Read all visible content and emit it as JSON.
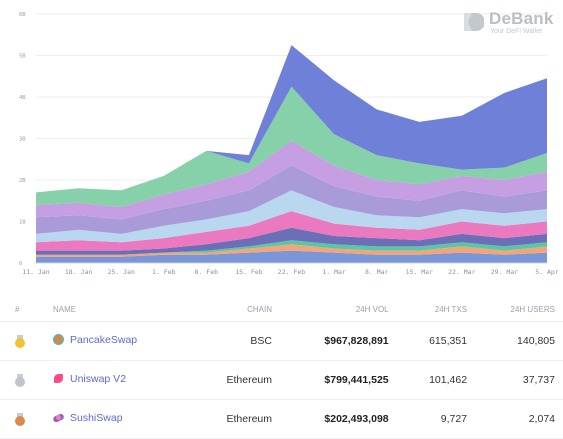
{
  "chart_data": {
    "type": "area",
    "stacked": true,
    "x": [
      "11. Jan",
      "18. Jan",
      "25. Jan",
      "1. Feb",
      "8. Feb",
      "15. Feb",
      "22. Feb",
      "1. Mar",
      "8. Mar",
      "15. Mar",
      "22. Mar",
      "29. Mar",
      "5. Apr"
    ],
    "y_ticks": [
      "0",
      "1B",
      "2B",
      "3B",
      "4B",
      "5B",
      "6B"
    ],
    "ylim": [
      0,
      6
    ],
    "grid": true,
    "series": [
      {
        "color": "#7b96d8",
        "values": [
          0.15,
          0.15,
          0.15,
          0.2,
          0.2,
          0.25,
          0.3,
          0.25,
          0.2,
          0.2,
          0.25,
          0.2,
          0.25
        ]
      },
      {
        "color": "#f0a57a",
        "values": [
          0.05,
          0.05,
          0.05,
          0.05,
          0.05,
          0.1,
          0.15,
          0.1,
          0.1,
          0.1,
          0.15,
          0.1,
          0.15
        ]
      },
      {
        "color": "#5ac6a3",
        "values": [
          0.0,
          0.0,
          0.0,
          0.0,
          0.05,
          0.05,
          0.1,
          0.1,
          0.1,
          0.1,
          0.1,
          0.1,
          0.1
        ]
      },
      {
        "color": "#6a6fb8",
        "values": [
          0.1,
          0.1,
          0.1,
          0.1,
          0.15,
          0.2,
          0.3,
          0.2,
          0.2,
          0.15,
          0.2,
          0.2,
          0.2
        ]
      },
      {
        "color": "#ea79c0",
        "values": [
          0.2,
          0.25,
          0.2,
          0.25,
          0.3,
          0.3,
          0.4,
          0.3,
          0.25,
          0.25,
          0.3,
          0.3,
          0.3
        ]
      },
      {
        "color": "#b9d7ee",
        "values": [
          0.2,
          0.25,
          0.2,
          0.3,
          0.3,
          0.35,
          0.5,
          0.4,
          0.3,
          0.3,
          0.3,
          0.3,
          0.3
        ]
      },
      {
        "color": "#a99ad8",
        "values": [
          0.4,
          0.35,
          0.35,
          0.4,
          0.45,
          0.5,
          0.6,
          0.5,
          0.45,
          0.4,
          0.45,
          0.4,
          0.45
        ]
      },
      {
        "color": "#c69ee2",
        "values": [
          0.3,
          0.3,
          0.3,
          0.35,
          0.4,
          0.45,
          0.6,
          0.5,
          0.4,
          0.4,
          0.35,
          0.4,
          0.45
        ]
      },
      {
        "color": "#86d1a9",
        "values": [
          0.3,
          0.35,
          0.4,
          0.45,
          0.8,
          0.2,
          1.3,
          0.75,
          0.6,
          0.5,
          0.15,
          0.3,
          0.45
        ]
      },
      {
        "color": "#6f80d8",
        "values": [
          0.0,
          0.0,
          0.0,
          0.0,
          0.0,
          0.2,
          1.0,
          1.3,
          1.1,
          1.0,
          1.3,
          1.8,
          1.8
        ]
      }
    ]
  },
  "logo": {
    "name": "DeBank",
    "tagline": "Your DeFi Wallet"
  },
  "table": {
    "headers": {
      "rank": "#",
      "name": "NAME",
      "chain": "CHAIN",
      "vol": "24H VOL",
      "txs": "24H TXS",
      "users": "24H USERS"
    },
    "rows": [
      {
        "name": "PancakeSwap",
        "chain": "BSC",
        "vol": "$967,828,891",
        "txs": "615,351",
        "users": "140,805",
        "medal": "#f2c230",
        "icon": "cake"
      },
      {
        "name": "Uniswap V2",
        "chain": "Ethereum",
        "vol": "$799,441,525",
        "txs": "101,462",
        "users": "37,737",
        "medal": "#c0c5cc",
        "icon": "uni"
      },
      {
        "name": "SushiSwap",
        "chain": "Ethereum",
        "vol": "$202,493,098",
        "txs": "9,727",
        "users": "2,074",
        "medal": "#d98a4e",
        "icon": "sushi"
      }
    ]
  }
}
